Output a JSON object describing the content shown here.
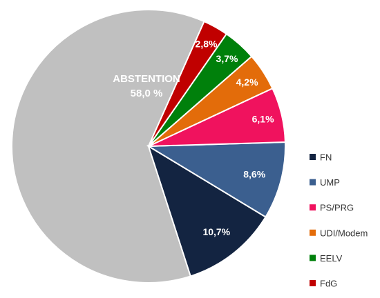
{
  "chart_data": {
    "type": "pie",
    "series": [
      {
        "name": "ABSTENTION",
        "value": 58.0,
        "label": "58,0 %",
        "color": "#c0c0c0"
      },
      {
        "name": "FN",
        "value": 10.7,
        "label": "10,7%",
        "color": "#132441"
      },
      {
        "name": "UMP",
        "value": 8.6,
        "label": "8,6%",
        "color": "#3b5f8f"
      },
      {
        "name": "PS/PRG",
        "value": 6.1,
        "label": "6,1%",
        "color": "#f0125e"
      },
      {
        "name": "UDI/Modem",
        "value": 4.2,
        "label": "4,2%",
        "color": "#e36c0a"
      },
      {
        "name": "EELV",
        "value": 3.7,
        "label": "3,7%",
        "color": "#00800b"
      },
      {
        "name": "FdG",
        "value": 2.8,
        "label": "2,8%",
        "color": "#c00000"
      }
    ],
    "legend": {
      "placement": "right",
      "entries": [
        "FN",
        "UMP",
        "PS/PRG",
        "UDI/Modem",
        "EELV",
        "FdG"
      ]
    }
  }
}
